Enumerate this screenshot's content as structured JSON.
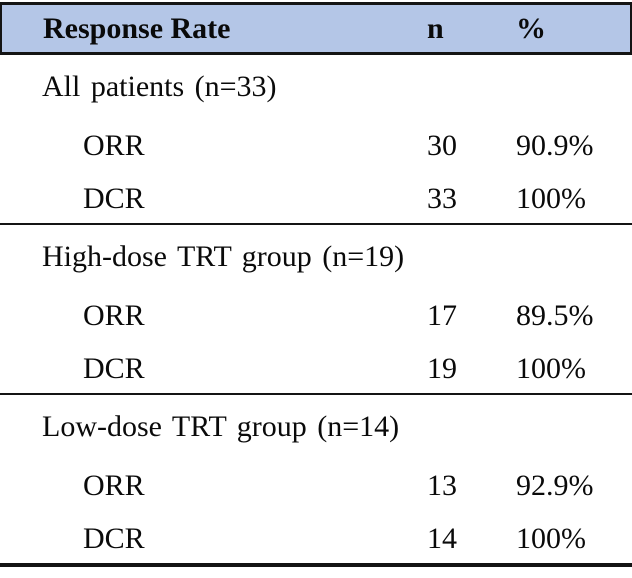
{
  "colors": {
    "header_bg": "#b4c6e7",
    "line_color": "#141414",
    "text_color": "#0a0a0a"
  },
  "table": {
    "columns": {
      "col1": "Response Rate",
      "col2": "n",
      "col3": "%"
    },
    "sections": [
      {
        "group_label": "All patients (n=33)",
        "rows": [
          {
            "label": "ORR",
            "n": "30",
            "pct": "90.9%"
          },
          {
            "label": "DCR",
            "n": "33",
            "pct": "100%"
          }
        ]
      },
      {
        "group_label": "High-dose TRT group (n=19)",
        "rows": [
          {
            "label": "ORR",
            "n": "17",
            "pct": "89.5%"
          },
          {
            "label": "DCR",
            "n": "19",
            "pct": "100%"
          }
        ]
      },
      {
        "group_label": "Low-dose TRT group (n=14)",
        "rows": [
          {
            "label": "ORR",
            "n": "13",
            "pct": "92.9%"
          },
          {
            "label": "DCR",
            "n": "14",
            "pct": "100%"
          }
        ]
      }
    ]
  },
  "chart_data": {
    "type": "table",
    "title": "Response Rate",
    "columns": [
      "Response Rate",
      "n",
      "%"
    ],
    "rows": [
      [
        "All patients (n=33)",
        "",
        ""
      ],
      [
        "ORR",
        30,
        "90.9%"
      ],
      [
        "DCR",
        33,
        "100%"
      ],
      [
        "High-dose TRT group (n=19)",
        "",
        ""
      ],
      [
        "ORR",
        17,
        "89.5%"
      ],
      [
        "DCR",
        19,
        "100%"
      ],
      [
        "Low-dose TRT group (n=14)",
        "",
        ""
      ],
      [
        "ORR",
        13,
        "92.9%"
      ],
      [
        "DCR",
        14,
        "100%"
      ]
    ]
  }
}
